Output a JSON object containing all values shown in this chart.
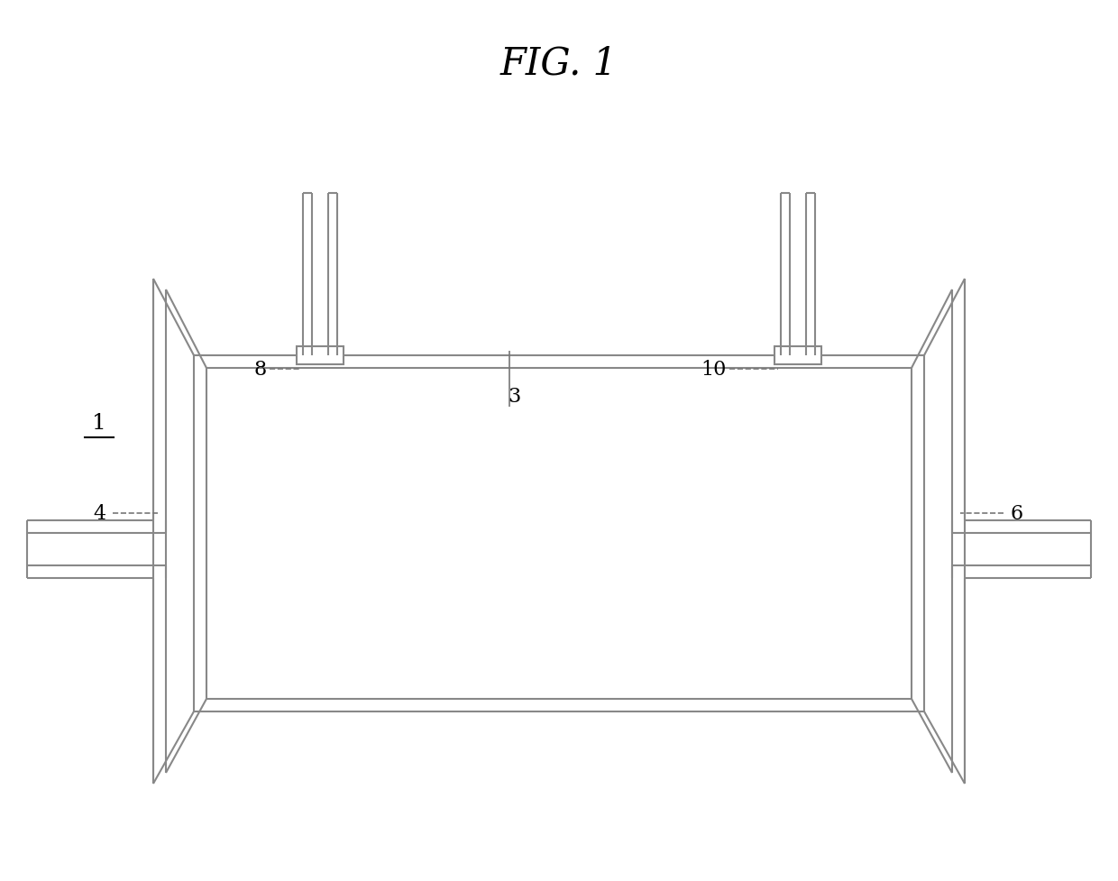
{
  "title": "FIG. 1",
  "bg_color": "#ffffff",
  "line_color": "#888888",
  "line_width": 1.5,
  "label_fontsize": 16,
  "label_family": "serif"
}
